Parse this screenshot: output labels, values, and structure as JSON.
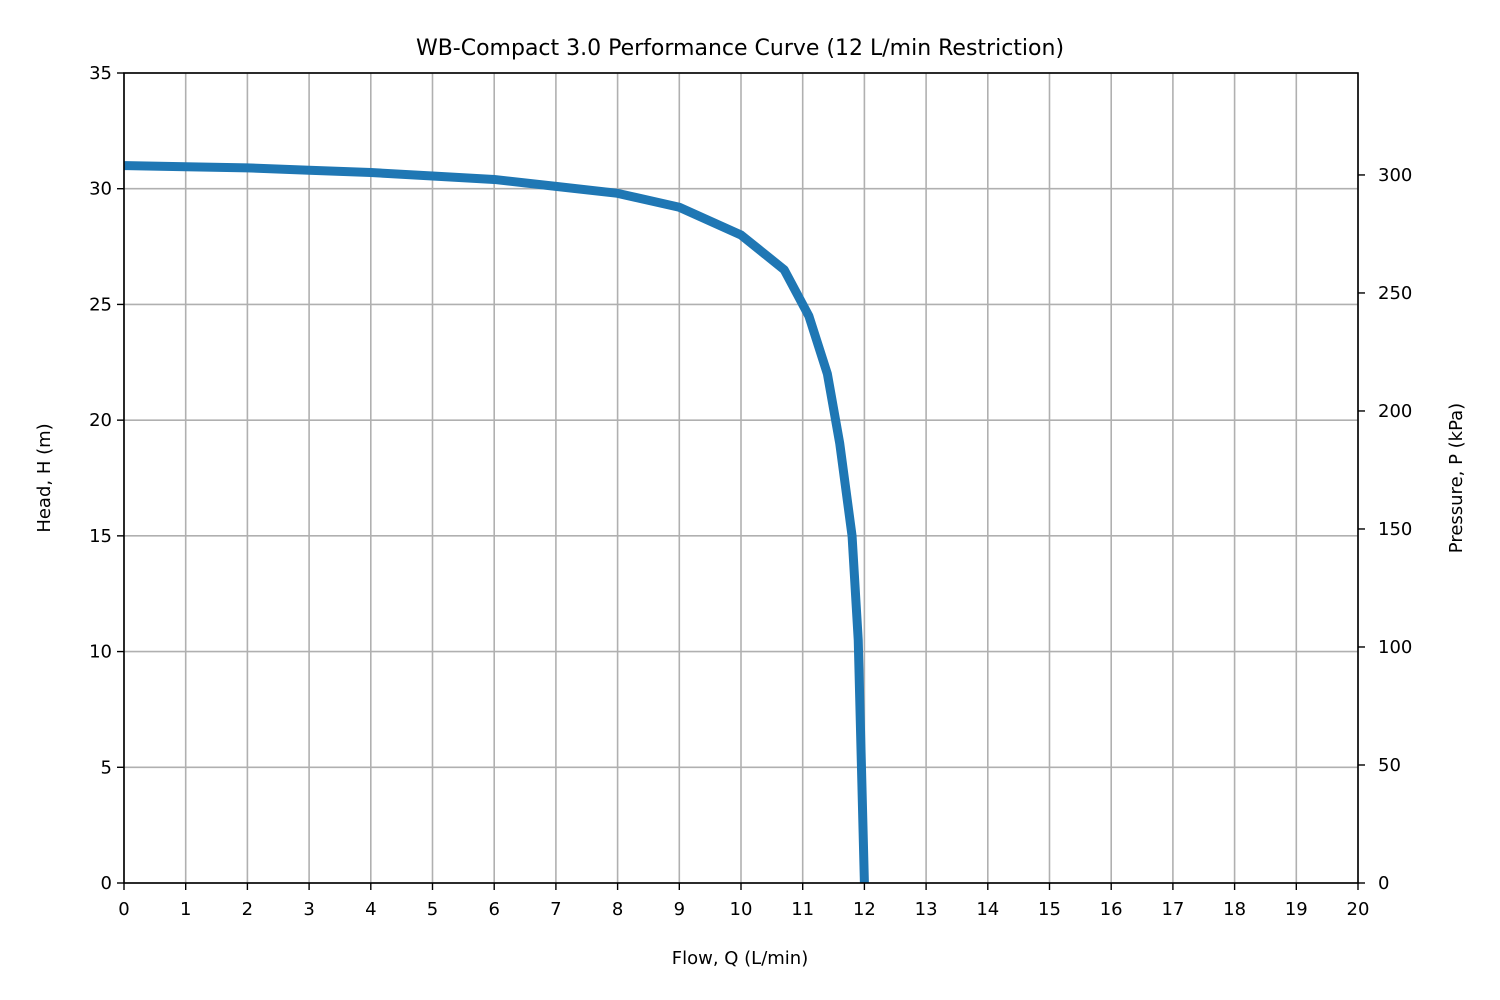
{
  "chart_data": {
    "type": "line",
    "title": "WB-Compact 3.0 Performance Curve (12 L/min Restriction)",
    "xlabel": "Flow, Q (L/min)",
    "ylabel": "Head, H (m)",
    "y2label": "Pressure, P (kPa)",
    "xlim": [
      0,
      20
    ],
    "ylim": [
      0,
      35
    ],
    "y2lim": [
      0,
      343.2
    ],
    "xticks": [
      0,
      1,
      2,
      3,
      4,
      5,
      6,
      7,
      8,
      9,
      10,
      11,
      12,
      13,
      14,
      15,
      16,
      17,
      18,
      19,
      20
    ],
    "yticks": [
      0,
      5,
      10,
      15,
      20,
      25,
      30,
      35
    ],
    "y2ticks": [
      0,
      50,
      100,
      150,
      200,
      250,
      300
    ],
    "grid": true,
    "line_color": "#1f77b4",
    "series": [
      {
        "x": [
          0,
          1,
          2,
          3,
          4,
          5,
          6,
          7,
          8,
          9,
          10,
          10.7,
          11.1,
          11.4,
          11.6,
          11.8,
          11.9,
          12.0
        ],
        "y": [
          31.0,
          30.95,
          30.9,
          30.8,
          30.7,
          30.55,
          30.4,
          30.1,
          29.8,
          29.2,
          28.0,
          26.5,
          24.5,
          22.0,
          19.0,
          15.0,
          10.5,
          0.0
        ]
      }
    ]
  }
}
